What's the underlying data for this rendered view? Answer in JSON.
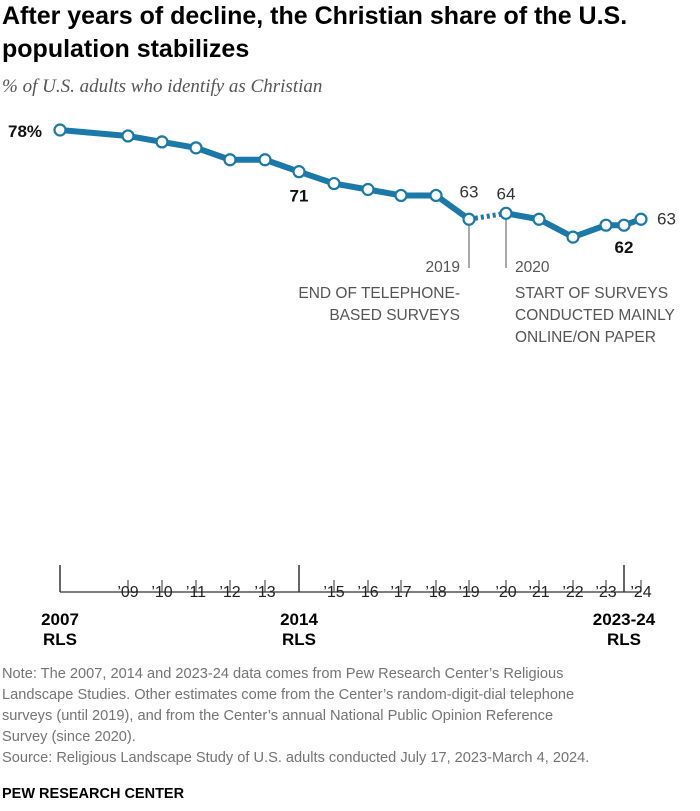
{
  "title": "After years of decline, the Christian share of the U.S. population stabilizes",
  "subtitle": "% of U.S. adults who identify as Christian",
  "chart_data": {
    "type": "line",
    "title": "After years of decline, the Christian share of the U.S. population stabilizes",
    "subtitle": "% of U.S. adults who identify as Christian",
    "xlabel": "",
    "ylabel": "",
    "grid": false,
    "legend": "none",
    "x": [
      2007,
      2009,
      2010,
      2011,
      2012,
      2013,
      2014,
      2015,
      2016,
      2017,
      2018,
      2019,
      2020,
      2021,
      2022,
      2023,
      2023.5,
      2024
    ],
    "series": [
      {
        "values": [
          78,
          77,
          76,
          75,
          73,
          73,
          71,
          69,
          68,
          67,
          67,
          63,
          64,
          63,
          60,
          62,
          62,
          63
        ],
        "color": "#1a79a8"
      }
    ],
    "value_labels": [
      {
        "index": 0,
        "text": "78%",
        "bold": true
      },
      {
        "index": 6,
        "text": "71",
        "bold": true
      },
      {
        "index": 11,
        "text": "63",
        "bold": false
      },
      {
        "index": 12,
        "text": "64",
        "bold": false
      },
      {
        "index": 16,
        "text": "62",
        "bold": true
      },
      {
        "index": 17,
        "text": "63",
        "bold": false
      }
    ],
    "annotations": [
      {
        "year": "2019",
        "lines": [
          "END OF TELEPHONE-",
          "BASED SURVEYS"
        ]
      },
      {
        "year": "2020",
        "lines": [
          "START OF SURVEYS",
          "CONDUCTED MAINLY",
          "ONLINE/ON PAPER"
        ]
      }
    ],
    "x_tick_labels": [
      "’09",
      "’10",
      "’11",
      "’12",
      "’13",
      "’15",
      "’16",
      "’17",
      "’18",
      "’19",
      "’20",
      "’21",
      "’22",
      "’23",
      "’24"
    ],
    "rls_labels": [
      {
        "top": "2007",
        "bottom": "RLS"
      },
      {
        "top": "2014",
        "bottom": "RLS"
      },
      {
        "top": "2023-24",
        "bottom": "RLS"
      }
    ]
  },
  "note": [
    "Note: The 2007, 2014 and 2023-24 data comes from Pew Research Center’s Religious",
    "Landscape Studies. Other estimates come from the Center’s random-digit-dial telephone",
    "surveys (until 2019), and from the Center’s annual National Public Opinion Reference",
    "Survey (since 2020).",
    "Source: Religious Landscape Study of U.S. adults conducted July 17, 2023-March 4, 2024."
  ],
  "brand": "PEW RESEARCH CENTER"
}
